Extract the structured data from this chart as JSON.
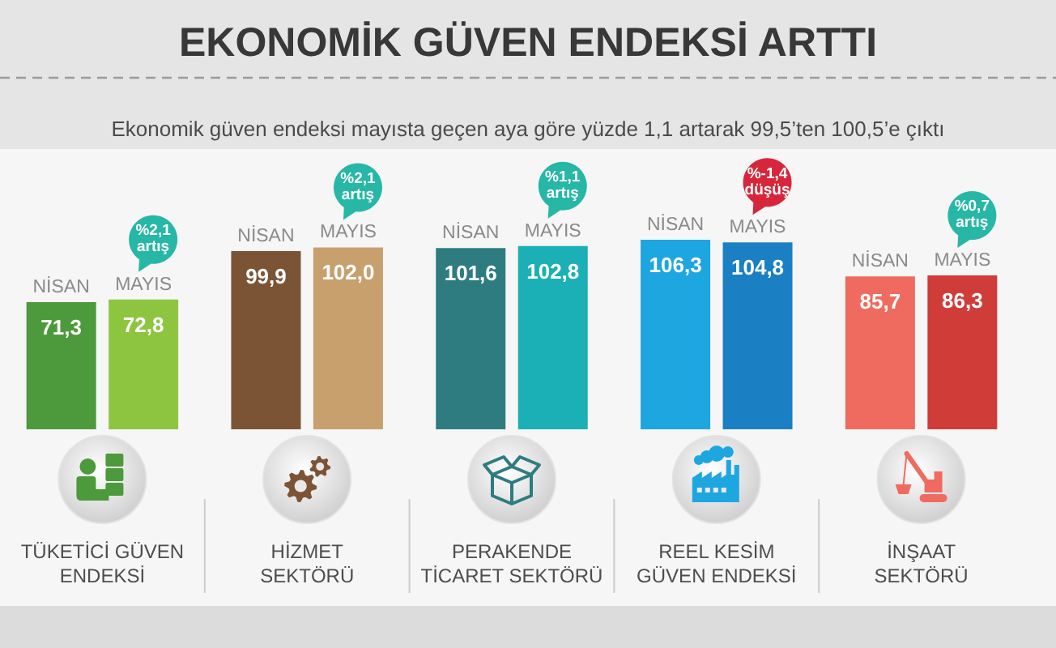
{
  "chart_data": {
    "type": "bar",
    "title": "EKONOMİK GÜVEN ENDEKSİ ARTTI",
    "subtitle": "Ekonomik güven endeksi mayısta geçen aya göre yüzde 1,1 artarak 99,5’ten 100,5’e çıktı",
    "categories": [
      "TÜKETİCİ GÜVEN\nENDEKSİ",
      "HİZMET\nSEKTÖRÜ",
      "PERAKENDE\nTİCARET SEKTÖRÜ",
      "REEL KESİM\nGÜVEN ENDEKSİ",
      "İNŞAAT\nSEKTÖRÜ"
    ],
    "series": [
      {
        "name": "NİSAN",
        "colors": [
          "#4c9a3b",
          "#7b5436",
          "#2e7c80",
          "#1ea6e0",
          "#ef6b5f"
        ],
        "values": [
          71.3,
          99.9,
          101.6,
          106.3,
          85.7
        ],
        "value_labels": [
          "71,3",
          "99,9",
          "101,6",
          "106,3",
          "85,7"
        ]
      },
      {
        "name": "MAYIS",
        "colors": [
          "#8dc540",
          "#c8a06d",
          "#1bb0b5",
          "#1a80c3",
          "#d03c38"
        ],
        "values": [
          72.8,
          102.0,
          102.8,
          104.8,
          86.3
        ],
        "value_labels": [
          "72,8",
          "102,0",
          "102,8",
          "104,8",
          "86,3"
        ]
      }
    ],
    "annotations": [
      "%2,1 artış",
      "%2,1 artış",
      "%1,1 artış",
      "%-1,4 düşüş",
      "%0,7 artış"
    ]
  }
}
